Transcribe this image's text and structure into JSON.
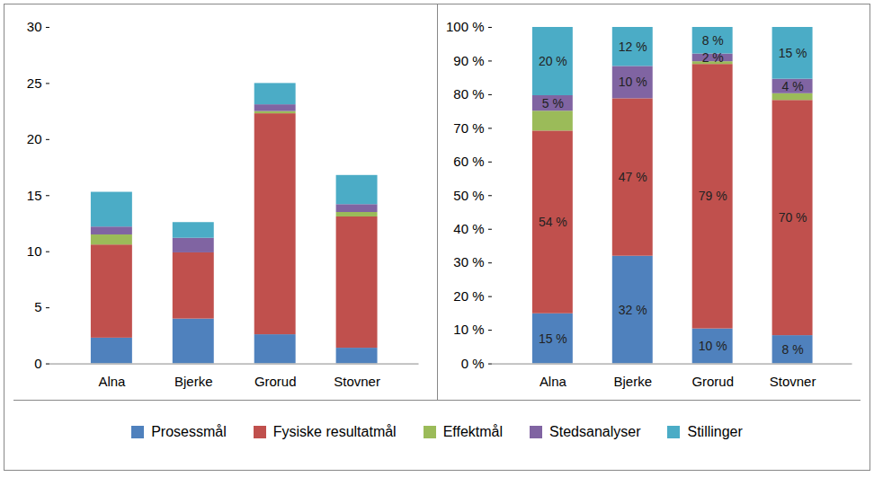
{
  "chart_data": [
    {
      "type": "bar",
      "stacked": true,
      "grid": false,
      "legend": "bottom",
      "categories": [
        "Alna",
        "Bjerke",
        "Grorud",
        "Stovner"
      ],
      "ylim": [
        0,
        30
      ],
      "yticks": [
        0,
        5,
        10,
        15,
        20,
        25,
        30
      ],
      "series": [
        {
          "name": "Prosessmål",
          "color": "#4f81bd",
          "values": [
            2.3,
            4.0,
            2.6,
            1.4
          ]
        },
        {
          "name": "Fysiske resultatmål",
          "color": "#c0504d",
          "values": [
            8.3,
            5.9,
            19.7,
            11.7
          ]
        },
        {
          "name": "Effektmål",
          "color": "#9bbb59",
          "values": [
            0.9,
            0,
            0.2,
            0.4
          ]
        },
        {
          "name": "Stedsanalyser",
          "color": "#8064a2",
          "values": [
            0.7,
            1.3,
            0.6,
            0.7
          ]
        },
        {
          "name": "Stillinger",
          "color": "#4bacc6",
          "values": [
            3.1,
            1.4,
            1.9,
            2.6
          ]
        }
      ]
    },
    {
      "type": "bar",
      "stacked": true,
      "grid": false,
      "categories": [
        "Alna",
        "Bjerke",
        "Grorud",
        "Stovner"
      ],
      "ylim": [
        0,
        100
      ],
      "yticks": [
        {
          "value": 0,
          "label": "0 %"
        },
        {
          "value": 10,
          "label": "10 %"
        },
        {
          "value": 20,
          "label": "20 %"
        },
        {
          "value": 30,
          "label": "30 %"
        },
        {
          "value": 40,
          "label": "40 %"
        },
        {
          "value": 50,
          "label": "50 %"
        },
        {
          "value": 60,
          "label": "60 %"
        },
        {
          "value": 70,
          "label": "70 %"
        },
        {
          "value": 80,
          "label": "80 %"
        },
        {
          "value": 90,
          "label": "90 %"
        },
        {
          "value": 100,
          "label": "100 %"
        }
      ],
      "series": [
        {
          "name": "Prosessmål",
          "color": "#4f81bd",
          "values": [
            14.9,
            32.0,
            10.4,
            8.4
          ],
          "data_labels": true,
          "value_labels": [
            "15 %",
            "32 %",
            "10 %",
            "8 %"
          ]
        },
        {
          "name": "Fysiske resultatmål",
          "color": "#c0504d",
          "values": [
            54.3,
            46.8,
            78.6,
            69.9
          ],
          "data_labels": true,
          "value_labels": [
            "54 %",
            "47 %",
            "79 %",
            "70 %"
          ]
        },
        {
          "name": "Effektmål",
          "color": "#9bbb59",
          "values": [
            5.9,
            0,
            0.8,
            2.0
          ],
          "data_labels": false
        },
        {
          "name": "Stedsanalyser",
          "color": "#8064a2",
          "values": [
            4.6,
            9.6,
            2.3,
            4.3
          ],
          "data_labels": true,
          "value_labels": [
            "5 %",
            "10 %",
            "2 %",
            "4 %"
          ]
        },
        {
          "name": "Stillinger",
          "color": "#4bacc6",
          "values": [
            20.3,
            11.6,
            7.9,
            15.4
          ],
          "data_labels": true,
          "value_labels": [
            "20 %",
            "12 %",
            "8 %",
            "15 %"
          ]
        }
      ]
    }
  ]
}
